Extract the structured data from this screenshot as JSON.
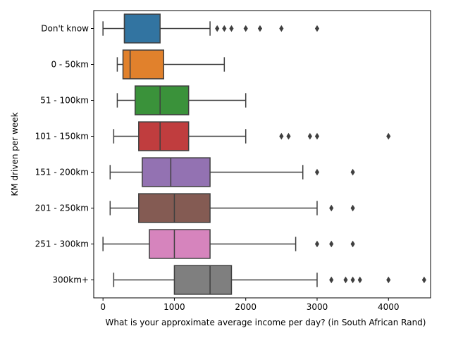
{
  "chart_data": {
    "type": "boxplot",
    "orientation": "horizontal",
    "xlabel": "What is your approximate average income per day? (in South African Rand)",
    "ylabel": "KM driven per week",
    "xlim": [
      -130,
      4590
    ],
    "xticks": [
      0,
      1000,
      2000,
      3000,
      4000
    ],
    "grid": false,
    "categories": [
      "Don't know",
      "0 - 50km",
      "51 - 100km",
      "101 - 150km",
      "151 - 200km",
      "201 - 250km",
      "251 - 300km",
      "300km+"
    ],
    "colors": [
      "#3274a1",
      "#e1812c",
      "#3a923a",
      "#c03d3e",
      "#9372b2",
      "#845b53",
      "#d684bd",
      "#7f7f7f"
    ],
    "boxes": [
      {
        "category": "Don't know",
        "whisker_low": 0,
        "q1": 300,
        "median": 300,
        "q3": 800,
        "whisker_high": 1500,
        "outliers": [
          1600,
          1700,
          1800,
          2000,
          2200,
          2500,
          3000
        ]
      },
      {
        "category": "0 - 50km",
        "whisker_low": 200,
        "q1": 280,
        "median": 380,
        "q3": 850,
        "whisker_high": 1700,
        "outliers": []
      },
      {
        "category": "51 - 100km",
        "whisker_low": 200,
        "q1": 450,
        "median": 800,
        "q3": 1200,
        "whisker_high": 2000,
        "outliers": []
      },
      {
        "category": "101 - 150km",
        "whisker_low": 150,
        "q1": 500,
        "median": 800,
        "q3": 1200,
        "whisker_high": 2000,
        "outliers": [
          2500,
          2600,
          2900,
          3000,
          4000
        ]
      },
      {
        "category": "151 - 200km",
        "whisker_low": 100,
        "q1": 550,
        "median": 950,
        "q3": 1500,
        "whisker_high": 2800,
        "outliers": [
          3000,
          3500
        ]
      },
      {
        "category": "201 - 250km",
        "whisker_low": 100,
        "q1": 500,
        "median": 1000,
        "q3": 1500,
        "whisker_high": 3000,
        "outliers": [
          3200,
          3500
        ]
      },
      {
        "category": "251 - 300km",
        "whisker_low": 0,
        "q1": 650,
        "median": 1000,
        "q3": 1500,
        "whisker_high": 2700,
        "outliers": [
          3000,
          3200,
          3500
        ]
      },
      {
        "category": "300km+",
        "whisker_low": 150,
        "q1": 1000,
        "median": 1500,
        "q3": 1800,
        "whisker_high": 3000,
        "outliers": [
          3200,
          3400,
          3500,
          3600,
          4000,
          4500
        ]
      }
    ]
  }
}
